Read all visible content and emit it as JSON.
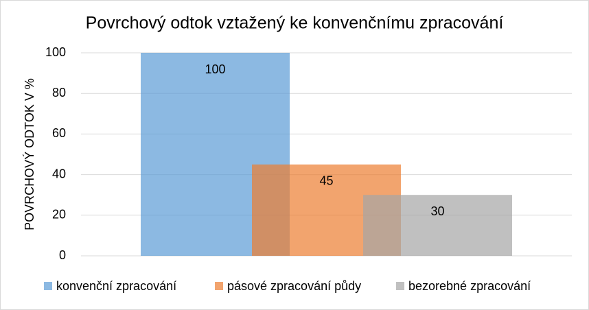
{
  "chart_data": {
    "type": "bar",
    "title": "Povrchový odtok vztažený ke konvenčnímu zpracování",
    "y_label": "POVRCHOVÝ ODTOK V %",
    "categories": [
      null
    ],
    "series": [
      {
        "name": "konvenční zpracování",
        "color": "#5b9bd5",
        "values": [
          100
        ]
      },
      {
        "name": "pásové zpracování půdy",
        "color": "#ed7d31",
        "values": [
          45
        ]
      },
      {
        "name": "bezorebné zpracování",
        "color": "#a5a5a5",
        "values": [
          30
        ]
      }
    ],
    "ylim": [
      0,
      100
    ],
    "yticks": [
      0,
      20,
      40,
      60,
      80,
      100
    ],
    "grid": true,
    "legend": "bottom",
    "data_labels": true
  }
}
